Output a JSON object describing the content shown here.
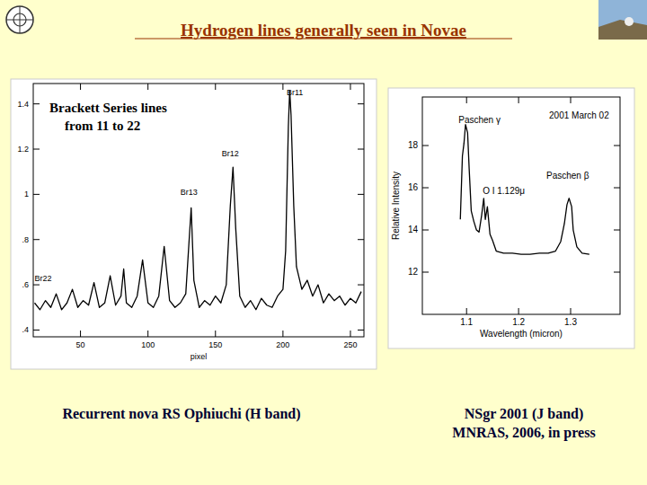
{
  "title": "Hydrogen lines generally seen in Novae",
  "chart_data": [
    {
      "type": "line",
      "title": [
        "Brackett Series lines",
        "from 11 to 22"
      ],
      "caption": [
        "Recurrent nova RS Ophiuchi (H band)"
      ],
      "x_label": "pixel",
      "color": "#000000",
      "xlim": [
        15,
        260
      ],
      "xticks": [
        50,
        100,
        150,
        200,
        250
      ],
      "ylim": [
        0.37,
        1.49
      ],
      "yticks": [
        {
          "value": 0.4,
          "label": ".4"
        },
        {
          "value": 0.6,
          "label": ".6"
        },
        {
          "value": 0.8,
          "label": ".8"
        },
        1,
        1.2,
        1.4
      ],
      "x": [
        16,
        20,
        24,
        28,
        32,
        36,
        40,
        44,
        48,
        52,
        56,
        60,
        64,
        68,
        72,
        76,
        80,
        82,
        84,
        88,
        92,
        96,
        100,
        104,
        108,
        112,
        116,
        120,
        124,
        128,
        130,
        132,
        134,
        138,
        142,
        146,
        150,
        154,
        158,
        161,
        163,
        165,
        168,
        172,
        176,
        180,
        184,
        188,
        192,
        196,
        200,
        202,
        204,
        205,
        206,
        208,
        210,
        214,
        218,
        222,
        226,
        230,
        234,
        238,
        242,
        246,
        250,
        254,
        258
      ],
      "values": [
        0.52,
        0.49,
        0.53,
        0.5,
        0.56,
        0.49,
        0.52,
        0.58,
        0.5,
        0.53,
        0.51,
        0.61,
        0.5,
        0.52,
        0.64,
        0.51,
        0.55,
        0.67,
        0.52,
        0.5,
        0.55,
        0.71,
        0.52,
        0.5,
        0.55,
        0.77,
        0.53,
        0.5,
        0.52,
        0.56,
        0.75,
        0.94,
        0.62,
        0.5,
        0.53,
        0.51,
        0.55,
        0.52,
        0.6,
        0.95,
        1.12,
        0.85,
        0.55,
        0.5,
        0.53,
        0.49,
        0.54,
        0.51,
        0.5,
        0.55,
        0.58,
        0.75,
        1.3,
        1.46,
        1.35,
        0.95,
        0.68,
        0.58,
        0.62,
        0.55,
        0.6,
        0.52,
        0.56,
        0.53,
        0.55,
        0.51,
        0.54,
        0.52,
        0.57
      ],
      "annotations": [
        {
          "text": "Br11",
          "x": 202.7,
          "y": 1.44
        },
        {
          "text": "Br12",
          "x": 154.7,
          "y": 1.17
        },
        {
          "text": "Br13",
          "x": 124,
          "y": 0.996
        },
        {
          "text": "Br22",
          "x": 16,
          "y": 0.616
        }
      ]
    },
    {
      "type": "line",
      "caption": [
        "NSgr 2001 (J  band)",
        "MNRAS, 2006, in press"
      ],
      "x_label": "Wavelength (micron)",
      "y_label": "Relative Intensity",
      "color": "#000000",
      "xlim": [
        1.015,
        1.395
      ],
      "xticks": [
        1.1,
        1.2,
        1.3
      ],
      "ylim": [
        10,
        20.3
      ],
      "yticks": [
        12,
        14,
        16,
        18
      ],
      "x": [
        1.088,
        1.092,
        1.095,
        1.098,
        1.102,
        1.105,
        1.109,
        1.114,
        1.119,
        1.124,
        1.129,
        1.133,
        1.136,
        1.14,
        1.145,
        1.15,
        1.157,
        1.171,
        1.188,
        1.205,
        1.222,
        1.24,
        1.257,
        1.271,
        1.281,
        1.288,
        1.293,
        1.297,
        1.302,
        1.305,
        1.312,
        1.322,
        1.336
      ],
      "values": [
        14.5,
        17.5,
        18.1,
        19.0,
        18.6,
        16.9,
        14.9,
        14.4,
        14.0,
        13.9,
        14.7,
        15.5,
        14.5,
        15.1,
        13.8,
        13.5,
        13.0,
        12.9,
        12.9,
        12.85,
        12.85,
        12.9,
        12.9,
        13.0,
        13.45,
        14.3,
        15.2,
        15.5,
        15.1,
        14.0,
        13.2,
        12.9,
        12.85
      ],
      "annotations": [
        {
          "text": "Paschen γ",
          "x": 1.0845,
          "y": 19.06
        },
        {
          "text": "2001 March 02",
          "x": 1.2586,
          "y": 19.28
        },
        {
          "text": "Paschen β",
          "x": 1.2534,
          "y": 16.43
        },
        {
          "text": "O I 1.129μ",
          "x": 1.131,
          "y": 15.7
        }
      ]
    }
  ]
}
